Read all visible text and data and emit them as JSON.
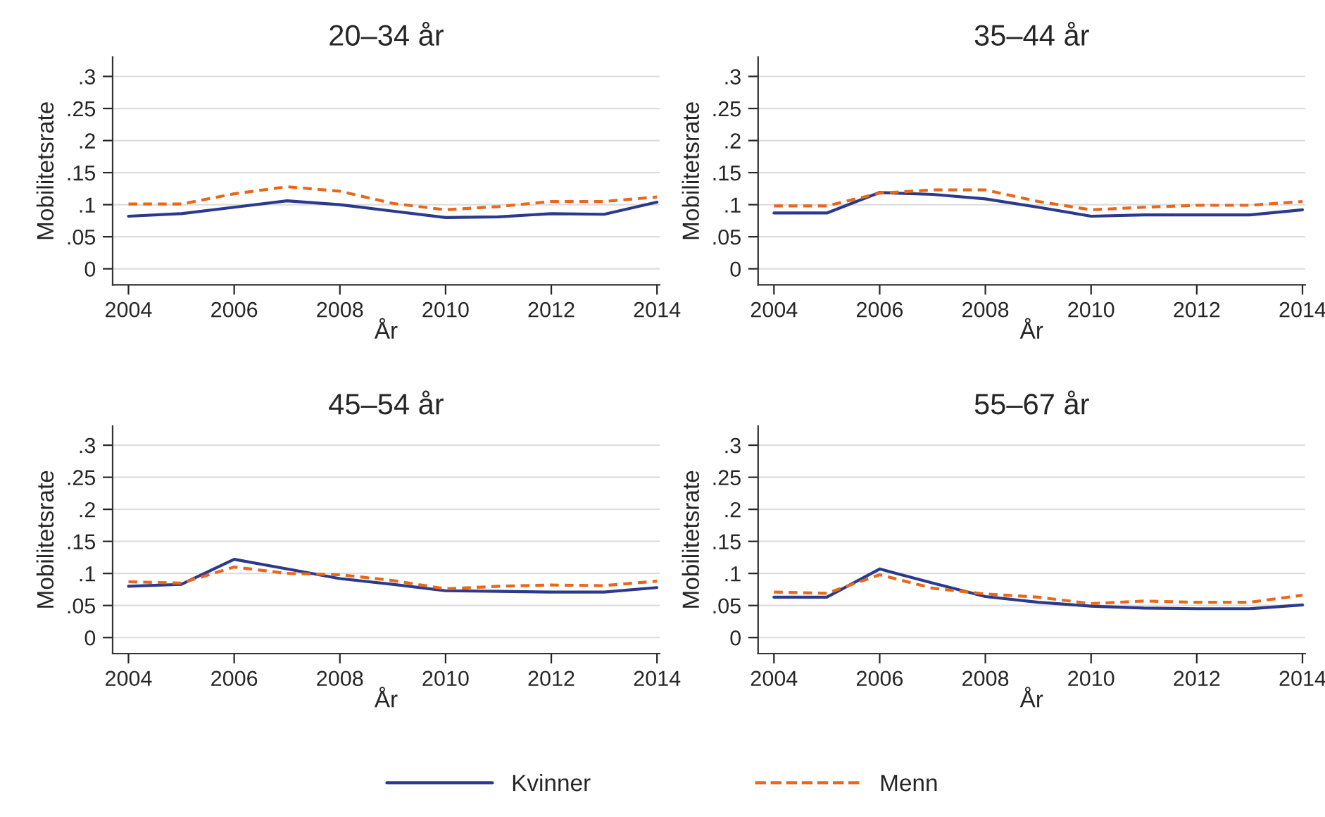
{
  "chart_data": [
    {
      "type": "line",
      "title": "20–34 år",
      "xlabel": "År",
      "ylabel": "Mobilitetsrate",
      "x": [
        2004,
        2005,
        2006,
        2007,
        2008,
        2009,
        2010,
        2011,
        2012,
        2013,
        2014
      ],
      "xlim": [
        2003.7,
        2014.05
      ],
      "xticks": [
        2004,
        2006,
        2008,
        2010,
        2012,
        2014
      ],
      "ylim": [
        -0.025,
        0.33
      ],
      "yticks": [
        {
          "value": 0,
          "label": "0"
        },
        {
          "value": 0.05,
          "label": ".05"
        },
        {
          "value": 0.1,
          "label": ".1"
        },
        {
          "value": 0.15,
          "label": ".15"
        },
        {
          "value": 0.2,
          "label": ".2"
        },
        {
          "value": 0.25,
          "label": ".25"
        },
        {
          "value": 0.3,
          "label": ".3"
        }
      ],
      "grid": "y",
      "legend": "bottom",
      "marker": "none",
      "series": [
        {
          "name": "Kvinner",
          "color": "#2b3a8c",
          "line_style": "solid",
          "values": [
            0.082,
            0.086,
            0.096,
            0.106,
            0.1,
            0.09,
            0.08,
            0.081,
            0.086,
            0.085,
            0.104
          ]
        },
        {
          "name": "Menn",
          "color": "#e8681a",
          "line_style": "dashed",
          "values": [
            0.101,
            0.101,
            0.117,
            0.128,
            0.121,
            0.102,
            0.092,
            0.097,
            0.105,
            0.105,
            0.112
          ]
        }
      ]
    },
    {
      "type": "line",
      "title": "35–44 år",
      "xlabel": "År",
      "ylabel": "Mobilitetsrate",
      "x": [
        2004,
        2005,
        2006,
        2007,
        2008,
        2009,
        2010,
        2011,
        2012,
        2013,
        2014
      ],
      "xlim": [
        2003.7,
        2014.05
      ],
      "xticks": [
        2004,
        2006,
        2008,
        2010,
        2012,
        2014
      ],
      "ylim": [
        -0.025,
        0.33
      ],
      "yticks": [
        {
          "value": 0,
          "label": "0"
        },
        {
          "value": 0.05,
          "label": ".05"
        },
        {
          "value": 0.1,
          "label": ".1"
        },
        {
          "value": 0.15,
          "label": ".15"
        },
        {
          "value": 0.2,
          "label": ".2"
        },
        {
          "value": 0.25,
          "label": ".25"
        },
        {
          "value": 0.3,
          "label": ".3"
        }
      ],
      "grid": "y",
      "marker": "none",
      "series": [
        {
          "color": "#2b3a8c",
          "line_style": "solid",
          "values": [
            0.087,
            0.087,
            0.119,
            0.116,
            0.109,
            0.096,
            0.082,
            0.084,
            0.084,
            0.084,
            0.092
          ]
        },
        {
          "color": "#e8681a",
          "line_style": "dashed",
          "values": [
            0.098,
            0.098,
            0.118,
            0.123,
            0.123,
            0.105,
            0.092,
            0.096,
            0.099,
            0.099,
            0.105
          ]
        }
      ]
    },
    {
      "type": "line",
      "title": "45–54 år",
      "xlabel": "År",
      "ylabel": "Mobilitetsrate",
      "x": [
        2004,
        2005,
        2006,
        2007,
        2008,
        2009,
        2010,
        2011,
        2012,
        2013,
        2014
      ],
      "xlim": [
        2003.7,
        2014.05
      ],
      "xticks": [
        2004,
        2006,
        2008,
        2010,
        2012,
        2014
      ],
      "ylim": [
        -0.025,
        0.33
      ],
      "yticks": [
        {
          "value": 0,
          "label": "0"
        },
        {
          "value": 0.05,
          "label": ".05"
        },
        {
          "value": 0.1,
          "label": ".1"
        },
        {
          "value": 0.15,
          "label": ".15"
        },
        {
          "value": 0.2,
          "label": ".2"
        },
        {
          "value": 0.25,
          "label": ".25"
        },
        {
          "value": 0.3,
          "label": ".3"
        }
      ],
      "grid": "y",
      "marker": "none",
      "series": [
        {
          "color": "#2b3a8c",
          "line_style": "solid",
          "values": [
            0.08,
            0.083,
            0.122,
            0.107,
            0.092,
            0.083,
            0.073,
            0.072,
            0.071,
            0.071,
            0.078
          ]
        },
        {
          "color": "#e8681a",
          "line_style": "dashed",
          "values": [
            0.087,
            0.085,
            0.11,
            0.1,
            0.098,
            0.089,
            0.076,
            0.08,
            0.082,
            0.081,
            0.088
          ]
        }
      ]
    },
    {
      "type": "line",
      "title": "55–67 år",
      "xlabel": "År",
      "ylabel": "Mobilitetsrate",
      "x": [
        2004,
        2005,
        2006,
        2007,
        2008,
        2009,
        2010,
        2011,
        2012,
        2013,
        2014
      ],
      "xlim": [
        2003.7,
        2014.05
      ],
      "xticks": [
        2004,
        2006,
        2008,
        2010,
        2012,
        2014
      ],
      "ylim": [
        -0.025,
        0.33
      ],
      "yticks": [
        {
          "value": 0,
          "label": "0"
        },
        {
          "value": 0.05,
          "label": ".05"
        },
        {
          "value": 0.1,
          "label": ".1"
        },
        {
          "value": 0.15,
          "label": ".15"
        },
        {
          "value": 0.2,
          "label": ".2"
        },
        {
          "value": 0.25,
          "label": ".25"
        },
        {
          "value": 0.3,
          "label": ".3"
        }
      ],
      "grid": "y",
      "marker": "none",
      "series": [
        {
          "color": "#2b3a8c",
          "line_style": "solid",
          "values": [
            0.063,
            0.063,
            0.107,
            0.085,
            0.064,
            0.055,
            0.049,
            0.046,
            0.045,
            0.045,
            0.051
          ]
        },
        {
          "color": "#e8681a",
          "line_style": "dashed",
          "values": [
            0.071,
            0.069,
            0.098,
            0.077,
            0.068,
            0.063,
            0.053,
            0.057,
            0.055,
            0.055,
            0.066
          ]
        }
      ]
    }
  ]
}
